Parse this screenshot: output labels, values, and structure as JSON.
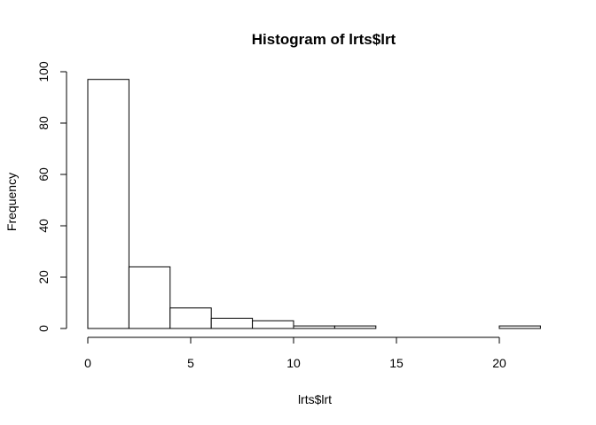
{
  "chart_data": {
    "type": "bar",
    "title": "Histogram of lrts$lrt",
    "xlabel": "lrts$lrt",
    "ylabel": "Frequency",
    "bins": [
      {
        "start": 0,
        "end": 2,
        "count": 97
      },
      {
        "start": 2,
        "end": 4,
        "count": 24
      },
      {
        "start": 4,
        "end": 6,
        "count": 8
      },
      {
        "start": 6,
        "end": 8,
        "count": 4
      },
      {
        "start": 8,
        "end": 10,
        "count": 3
      },
      {
        "start": 10,
        "end": 12,
        "count": 1
      },
      {
        "start": 12,
        "end": 14,
        "count": 1
      },
      {
        "start": 14,
        "end": 16,
        "count": 0
      },
      {
        "start": 16,
        "end": 18,
        "count": 0
      },
      {
        "start": 18,
        "end": 20,
        "count": 0
      },
      {
        "start": 20,
        "end": 22,
        "count": 1
      }
    ],
    "xlim": [
      0,
      22
    ],
    "ylim": [
      0,
      100
    ],
    "x_ticks": [
      "0",
      "5",
      "10",
      "15",
      "20"
    ],
    "y_ticks": [
      "0",
      "20",
      "40",
      "60",
      "80",
      "100"
    ],
    "grid": false,
    "legend": "none",
    "bar_fill": "#ffffff",
    "bar_stroke": "#000000"
  }
}
